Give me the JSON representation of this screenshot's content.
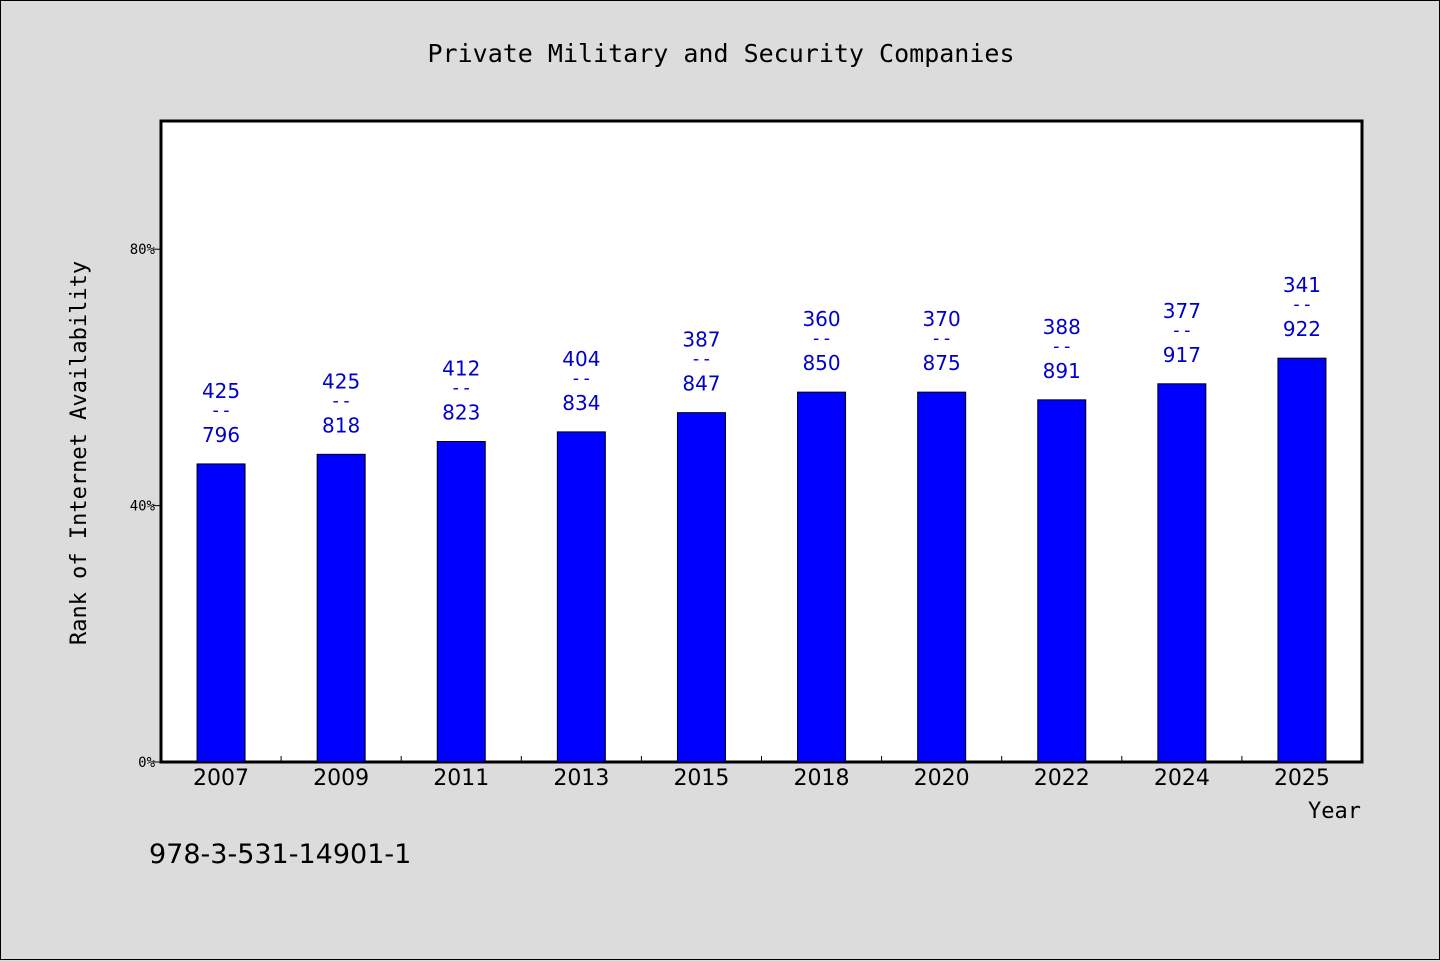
{
  "chart_data": {
    "type": "bar",
    "title": "Private Military and Security Companies",
    "xlabel": "Year",
    "ylabel": "Rank of Internet Availability",
    "ylim": [
      0,
      100
    ],
    "yticks": [
      {
        "value": 0,
        "label": "0%"
      },
      {
        "value": 40,
        "label": "40%"
      },
      {
        "value": 80,
        "label": "80%"
      }
    ],
    "categories": [
      "2007",
      "2009",
      "2011",
      "2013",
      "2015",
      "2018",
      "2020",
      "2022",
      "2024",
      "2025"
    ],
    "values": [
      46.5,
      48,
      50,
      51.5,
      54.5,
      57.7,
      57.7,
      56.5,
      59,
      63
    ],
    "data_labels": [
      {
        "top": "425",
        "sep": "--",
        "bottom": "796"
      },
      {
        "top": "425",
        "sep": "--",
        "bottom": "818"
      },
      {
        "top": "412",
        "sep": "--",
        "bottom": "823"
      },
      {
        "top": "404",
        "sep": "--",
        "bottom": "834"
      },
      {
        "top": "387",
        "sep": "--",
        "bottom": "847"
      },
      {
        "top": "360",
        "sep": "--",
        "bottom": "850"
      },
      {
        "top": "370",
        "sep": "--",
        "bottom": "875"
      },
      {
        "top": "388",
        "sep": "--",
        "bottom": "891"
      },
      {
        "top": "377",
        "sep": "--",
        "bottom": "917"
      },
      {
        "top": "341",
        "sep": "--",
        "bottom": "922"
      }
    ],
    "bar_color": "#0000ff",
    "label_color": "#0000cc",
    "grid": false,
    "legend": "none"
  },
  "footer": {
    "isbn": "978-3-531-14901-1"
  }
}
